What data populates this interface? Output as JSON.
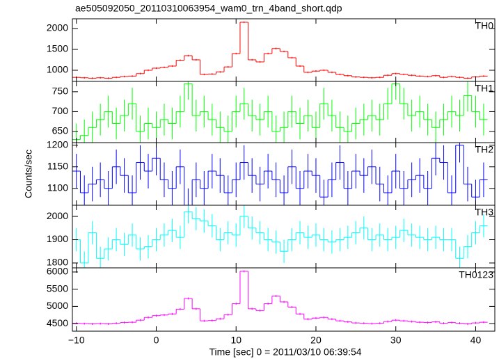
{
  "title": "ae505092050_20110310063954_wam0_trn_4band_short.qdp",
  "ylabel": "Counts/sec",
  "xlabel": "Time [sec] 0 = 2011/03/10 06:39:54",
  "xlim": [
    -10.5,
    42.4
  ],
  "xticks": [
    {
      "value": -10,
      "label": "−10"
    },
    0,
    10,
    20,
    30,
    40
  ],
  "x": [
    -10,
    -9,
    -8,
    -7,
    -6,
    -5,
    -4,
    -3,
    -2,
    -1,
    0,
    1,
    2,
    3,
    4,
    5,
    6,
    7,
    8,
    9,
    10,
    11,
    12,
    13,
    14,
    15,
    16,
    17,
    18,
    19,
    20,
    21,
    22,
    23,
    24,
    25,
    26,
    27,
    28,
    29,
    30,
    31,
    32,
    33,
    34,
    35,
    36,
    37,
    38,
    39,
    40,
    41
  ],
  "chart_data": [
    {
      "type": "step",
      "name": "TH0",
      "color": "#ff0000",
      "error": 20,
      "ylim": [
        733,
        2233
      ],
      "yticks": [
        1000,
        1500,
        2000
      ],
      "values": [
        830,
        820,
        810,
        820,
        810,
        830,
        850,
        860,
        920,
        1000,
        1050,
        1070,
        1100,
        1240,
        1350,
        1250,
        900,
        910,
        960,
        1080,
        1400,
        2150,
        1250,
        1200,
        1400,
        1520,
        1450,
        1300,
        1100,
        950,
        980,
        1000,
        950,
        900,
        870,
        840,
        830,
        820,
        830,
        880,
        920,
        900,
        880,
        860,
        850,
        870,
        830,
        850,
        830,
        810,
        840,
        860
      ]
    },
    {
      "type": "step",
      "name": "TH1",
      "color": "#00ff00",
      "error": 40,
      "ylim": [
        622,
        776
      ],
      "yticks": [
        650,
        700,
        750
      ],
      "values": [
        630,
        640,
        660,
        680,
        700,
        670,
        690,
        720,
        650,
        670,
        660,
        680,
        670,
        700,
        770,
        690,
        700,
        680,
        660,
        650,
        700,
        720,
        690,
        680,
        700,
        650,
        660,
        700,
        670,
        690,
        660,
        720,
        690,
        660,
        650,
        670,
        680,
        690,
        680,
        720,
        770,
        720,
        690,
        700,
        680,
        660,
        680,
        700,
        690,
        740,
        700,
        680
      ]
    },
    {
      "type": "step",
      "name": "TH2",
      "color": "#0000ff",
      "error": 40,
      "ylim": [
        1061,
        1206
      ],
      "yticks": [
        1100,
        1150,
        1200
      ],
      "values": [
        1140,
        1090,
        1110,
        1120,
        1100,
        1150,
        1130,
        1090,
        1160,
        1140,
        1170,
        1120,
        1100,
        1150,
        1060,
        1120,
        1100,
        1140,
        1130,
        1090,
        1120,
        1160,
        1130,
        1110,
        1140,
        1120,
        1090,
        1150,
        1100,
        1140,
        1130,
        1080,
        1120,
        1160,
        1100,
        1140,
        1130,
        1150,
        1110,
        1090,
        1140,
        1100,
        1120,
        1130,
        1100,
        1170,
        1160,
        1090,
        1200,
        1110,
        1080,
        1120
      ]
    },
    {
      "type": "step",
      "name": "TH3",
      "color": "#00ffff",
      "error": 50,
      "ylim": [
        1779,
        2048
      ],
      "yticks": [
        1800,
        1900,
        2000
      ],
      "values": [
        1900,
        1800,
        1930,
        1820,
        1860,
        1900,
        1880,
        1920,
        1860,
        1870,
        1900,
        1920,
        1940,
        1910,
        2020,
        1990,
        1980,
        1960,
        1900,
        1930,
        1920,
        2000,
        1950,
        1930,
        1900,
        1890,
        1850,
        1900,
        1930,
        1910,
        1920,
        1900,
        1890,
        1900,
        1910,
        1930,
        1950,
        1900,
        1920,
        1900,
        1910,
        1940,
        1920,
        1910,
        1900,
        1910,
        1900,
        1900,
        1820,
        1870,
        1930,
        1960
      ]
    },
    {
      "type": "step",
      "name": "TH0123",
      "color": "#ff00ff",
      "error": 30,
      "ylim": [
        4280,
        6120
      ],
      "yticks": [
        4500,
        5000,
        5500,
        6000
      ],
      "values": [
        4510,
        4500,
        4490,
        4500,
        4490,
        4510,
        4530,
        4540,
        4600,
        4680,
        4730,
        4750,
        4780,
        4920,
        5230,
        4930,
        4580,
        4590,
        4640,
        4760,
        5080,
        6020,
        4930,
        4880,
        5080,
        5300,
        5130,
        4980,
        4780,
        4630,
        4660,
        4680,
        4630,
        4580,
        4550,
        4520,
        4510,
        4500,
        4510,
        4560,
        4600,
        4580,
        4560,
        4540,
        4530,
        4550,
        4510,
        4530,
        4510,
        4490,
        4520,
        4540
      ]
    }
  ]
}
